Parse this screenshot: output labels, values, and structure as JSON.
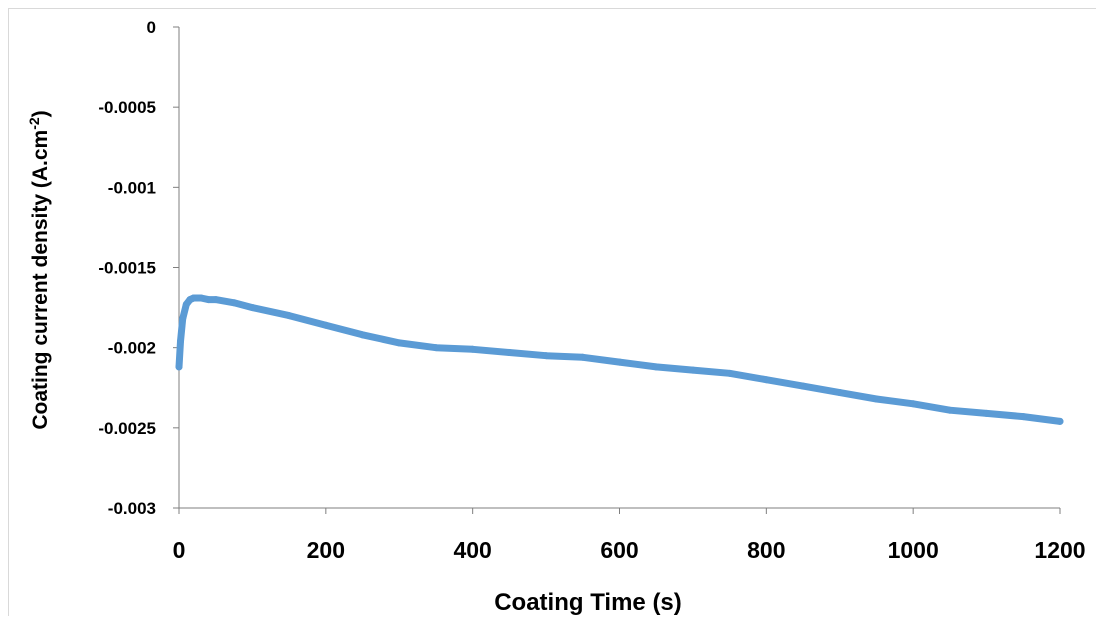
{
  "chart_data": {
    "type": "line",
    "xlabel": "Coating Time (s)",
    "ylabel": {
      "main": "Coating current density  (A.cm",
      "sup": "-2",
      "close": ")"
    },
    "xlim": [
      0,
      1200
    ],
    "ylim": [
      -0.003,
      0
    ],
    "x_ticks": [
      0,
      200,
      400,
      600,
      800,
      1000,
      1200
    ],
    "x_tick_labels": [
      "0",
      "200",
      "400",
      "600",
      "800",
      "1000",
      "1200"
    ],
    "y_ticks": [
      0,
      -0.0005,
      -0.001,
      -0.0015,
      -0.002,
      -0.0025,
      -0.003
    ],
    "y_tick_labels": [
      "0",
      "-0.0005",
      "-0.001",
      "-0.0015",
      "-0.002",
      "-0.0025",
      "-0.003"
    ],
    "grid": false,
    "legend": "none",
    "series_color": "#5b9bd5",
    "axis_color": "#7f7f7f",
    "series": [
      {
        "x": [
          0,
          2,
          5,
          10,
          15,
          20,
          25,
          30,
          40,
          50,
          75,
          100,
          150,
          200,
          250,
          300,
          350,
          400,
          450,
          500,
          550,
          600,
          650,
          700,
          750,
          800,
          850,
          900,
          950,
          1000,
          1050,
          1100,
          1150,
          1200
        ],
        "y": [
          -0.00212,
          -0.00196,
          -0.00182,
          -0.00173,
          -0.0017,
          -0.00169,
          -0.00169,
          -0.00169,
          -0.0017,
          -0.0017,
          -0.00172,
          -0.00175,
          -0.0018,
          -0.00186,
          -0.00192,
          -0.00197,
          -0.002,
          -0.00201,
          -0.00203,
          -0.00205,
          -0.00206,
          -0.00209,
          -0.00212,
          -0.00214,
          -0.00216,
          -0.0022,
          -0.00224,
          -0.00228,
          -0.00232,
          -0.00235,
          -0.00239,
          -0.00241,
          -0.00243,
          -0.00246
        ]
      }
    ]
  }
}
